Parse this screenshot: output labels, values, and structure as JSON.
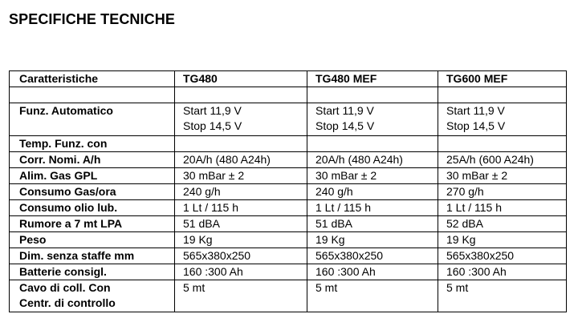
{
  "title": "SPECIFICHE TECNICHE",
  "table": {
    "headers": [
      "Caratteristiche",
      "TG480",
      "TG480 MEF",
      "TG600 MEF"
    ],
    "rows": [
      {
        "label": [
          "",
          ""
        ],
        "values": [
          [
            "",
            ""
          ],
          [
            "",
            ""
          ],
          [
            "",
            ""
          ]
        ]
      },
      {
        "label": [
          "Funz. Automatico",
          ""
        ],
        "values": [
          [
            "Start 11,9 V",
            "Stop 14,5 V"
          ],
          [
            "Start 11,9 V",
            "Stop 14,5 V"
          ],
          [
            "Start 11,9 V",
            "Stop 14,5 V"
          ]
        ]
      },
      {
        "label": [
          "Temp. Funz. con",
          ""
        ],
        "values": [
          [
            "",
            ""
          ],
          [
            "",
            ""
          ],
          [
            "",
            ""
          ]
        ]
      },
      {
        "label": [
          "Corr. Nomi. A/h",
          ""
        ],
        "values": [
          [
            "20A/h (480 A24h)",
            ""
          ],
          [
            "20A/h (480 A24h)",
            ""
          ],
          [
            "25A/h (600 A24h)",
            ""
          ]
        ]
      },
      {
        "label": [
          "Alim. Gas GPL",
          ""
        ],
        "values": [
          [
            "30 mBar ± 2",
            ""
          ],
          [
            "30 mBar ± 2",
            ""
          ],
          [
            "30 mBar ± 2",
            ""
          ]
        ]
      },
      {
        "label": [
          "Consumo Gas/ora",
          ""
        ],
        "values": [
          [
            "240 g/h",
            ""
          ],
          [
            "240 g/h",
            ""
          ],
          [
            "270 g/h",
            ""
          ]
        ]
      },
      {
        "label": [
          "Consumo olio lub.",
          ""
        ],
        "values": [
          [
            "1 Lt / 115 h",
            ""
          ],
          [
            "1 Lt / 115 h",
            ""
          ],
          [
            "1 Lt / 115 h",
            ""
          ]
        ]
      },
      {
        "label": [
          "Rumore a 7 mt LPA",
          ""
        ],
        "values": [
          [
            "51 dBA",
            ""
          ],
          [
            "51 dBA",
            ""
          ],
          [
            "52 dBA",
            ""
          ]
        ]
      },
      {
        "label": [
          "Peso",
          ""
        ],
        "values": [
          [
            "19 Kg",
            ""
          ],
          [
            "19 Kg",
            ""
          ],
          [
            "19 Kg",
            ""
          ]
        ]
      },
      {
        "label": [
          "Dim. senza staffe mm",
          ""
        ],
        "values": [
          [
            "565x380x250",
            ""
          ],
          [
            "565x380x250",
            ""
          ],
          [
            "565x380x250",
            ""
          ]
        ]
      },
      {
        "label": [
          "Batterie consigl.",
          ""
        ],
        "values": [
          [
            "160 :300 Ah",
            ""
          ],
          [
            "160 :300 Ah",
            ""
          ],
          [
            "160 :300 Ah",
            ""
          ]
        ]
      },
      {
        "label": [
          "Cavo di coll. Con",
          "Centr. di controllo"
        ],
        "values": [
          [
            "5 mt",
            ""
          ],
          [
            "5 mt",
            ""
          ],
          [
            "5 mt",
            ""
          ]
        ]
      }
    ]
  }
}
